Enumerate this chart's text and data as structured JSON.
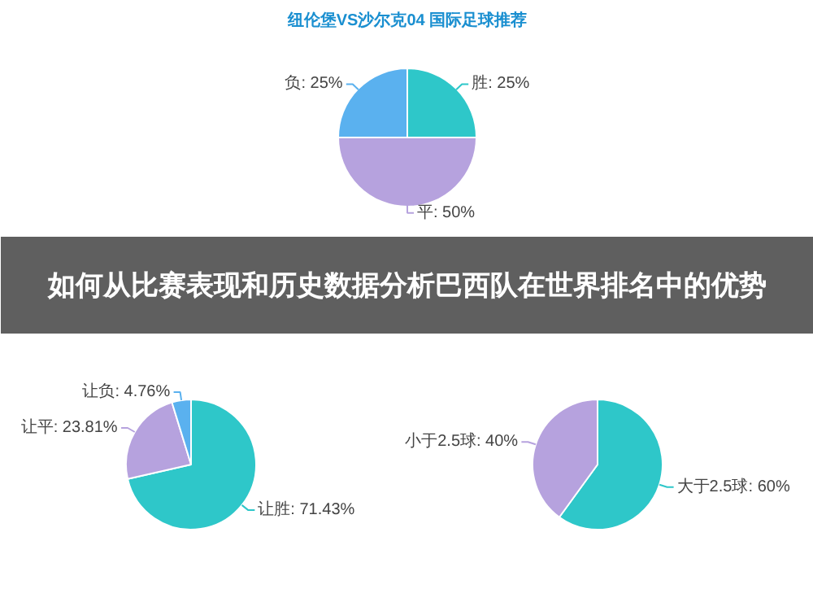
{
  "chart_data": [
    {
      "type": "pie",
      "title": "纽伦堡VS沙尔克04 国际足球推荐",
      "categories": [
        "胜",
        "平",
        "负"
      ],
      "values": [
        25,
        50,
        25
      ],
      "colors": [
        "#2ec7c9",
        "#b6a2de",
        "#5ab1ef"
      ],
      "value_labels": [
        ": 25%",
        ": 50%",
        ": 25%"
      ]
    },
    {
      "type": "other",
      "title": "如何从比赛表现和历史数据分析巴西队在世界排名中的优势"
    },
    {
      "type": "pie",
      "categories": [
        "让胜",
        "让平",
        "让负"
      ],
      "values": [
        71.43,
        23.81,
        4.76
      ],
      "colors": [
        "#2ec7c9",
        "#b6a2de",
        "#5ab1ef"
      ],
      "value_labels": [
        ": 71.43%",
        ": 23.81%",
        ": 4.76%"
      ]
    },
    {
      "type": "pie",
      "categories": [
        "大于2.5球",
        "小于2.5球"
      ],
      "values": [
        60,
        40
      ],
      "colors": [
        "#2ec7c9",
        "#b6a2de"
      ],
      "value_labels": [
        ": 60%",
        ": 40%"
      ]
    }
  ]
}
